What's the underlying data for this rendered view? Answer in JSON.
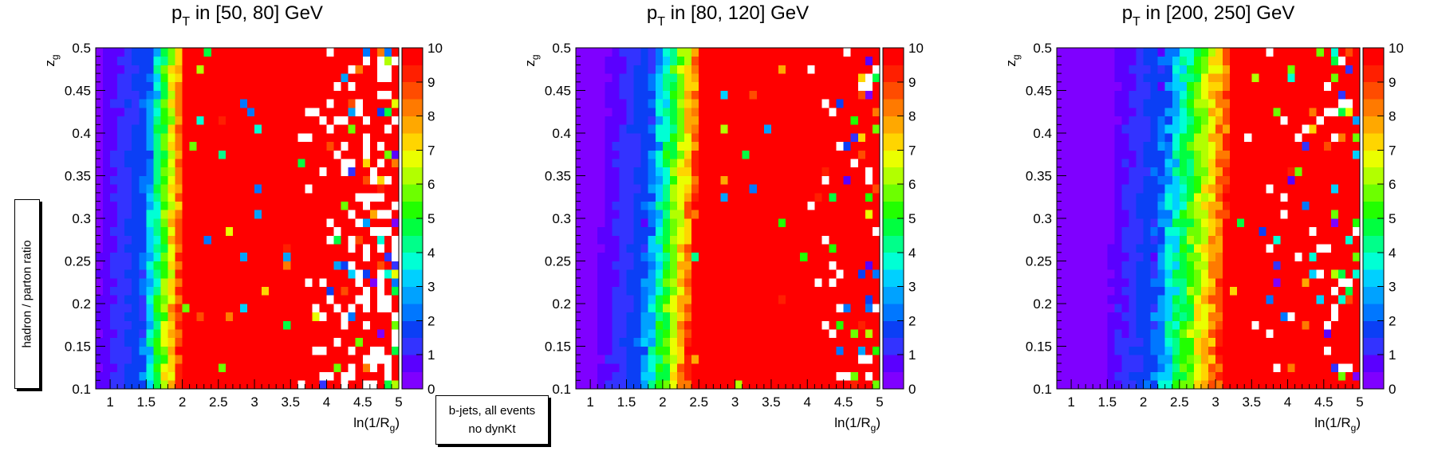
{
  "figure": {
    "y_title": "hadron / parton ratio",
    "tag_line1": "b-jets, all events",
    "tag_line2": "no dynKt"
  },
  "colors": {
    "palette": [
      "#7f00ff",
      "#5a00ff",
      "#3333ff",
      "#0b3ff5",
      "#0077ff",
      "#00a2ff",
      "#00d0ff",
      "#00ffd5",
      "#00ff8a",
      "#00ff40",
      "#22ff00",
      "#6dff00",
      "#b2ff00",
      "#eaff00",
      "#ffd500",
      "#ffa800",
      "#ff7a00",
      "#ff4c00",
      "#ff1f00",
      "#ff0000"
    ],
    "empty_bin": "#ffffff",
    "axis": "#000000"
  },
  "chart_data": [
    {
      "type": "heatmap",
      "title": "p_T in [50, 80] GeV",
      "title_main": "p",
      "title_sub": "T",
      "title_rest": " in [50, 80] GeV",
      "xlabel": "ln(1/R_g)",
      "ylabel": "z_g",
      "xlim": [
        0.8,
        5.0
      ],
      "ylim": [
        0.1,
        0.5
      ],
      "zlim": [
        0,
        10
      ],
      "x_bins": 42,
      "y_bins": 40,
      "x_ticks": [
        "1",
        "1.5",
        "2",
        "2.5",
        "3",
        "3.5",
        "4",
        "4.5",
        "5"
      ],
      "y_ticks": [
        "0.1",
        "0.15",
        "0.2",
        "0.25",
        "0.3",
        "0.35",
        "0.4",
        "0.45",
        "0.5"
      ],
      "z_ticks": [
        "0",
        "1",
        "2",
        "3",
        "4",
        "5",
        "6",
        "7",
        "8",
        "9",
        "10"
      ],
      "transition": {
        "x_at_ylow": 1.95,
        "x_at_yhigh": 2.05,
        "width": 0.55
      },
      "noise_from_x": 3.6,
      "empty_fraction_far": 0.22,
      "value_range_note": "ratio rises from ~0 (violet) at low ln(1/Rg) to >=10 (red) beyond the transition"
    },
    {
      "type": "heatmap",
      "title": "p_T in [80, 120] GeV",
      "title_main": "p",
      "title_sub": "T",
      "title_rest": " in [80, 120] GeV",
      "xlabel": "ln(1/R_g)",
      "ylabel": "z_g",
      "xlim": [
        0.8,
        5.0
      ],
      "ylim": [
        0.1,
        0.5
      ],
      "zlim": [
        0,
        10
      ],
      "x_bins": 42,
      "y_bins": 40,
      "x_ticks": [
        "1",
        "1.5",
        "2",
        "2.5",
        "3",
        "3.5",
        "4",
        "4.5",
        "5"
      ],
      "y_ticks": [
        "0.1",
        "0.15",
        "0.2",
        "0.25",
        "0.3",
        "0.35",
        "0.4",
        "0.45",
        "0.5"
      ],
      "z_ticks": [
        "0",
        "1",
        "2",
        "3",
        "4",
        "5",
        "6",
        "7",
        "8",
        "9",
        "10"
      ],
      "transition": {
        "x_at_ylow": 2.35,
        "x_at_yhigh": 2.55,
        "width": 0.7
      },
      "noise_from_x": 4.0,
      "empty_fraction_far": 0.12,
      "value_range_note": "ratio rises from ~0 (violet) at low ln(1/Rg) to >=10 (red) beyond the transition"
    },
    {
      "type": "heatmap",
      "title": "p_T in [200, 250] GeV",
      "title_main": "p",
      "title_sub": "T",
      "title_rest": " in [200, 250] GeV",
      "xlabel": "ln(1/R_g)",
      "ylabel": "z_g",
      "xlim": [
        0.8,
        5.0
      ],
      "ylim": [
        0.1,
        0.5
      ],
      "zlim": [
        0,
        10
      ],
      "x_bins": 42,
      "y_bins": 40,
      "x_ticks": [
        "1",
        "1.5",
        "2",
        "2.5",
        "3",
        "3.5",
        "4",
        "4.5",
        "5"
      ],
      "y_ticks": [
        "0.1",
        "0.15",
        "0.2",
        "0.25",
        "0.3",
        "0.35",
        "0.4",
        "0.45",
        "0.5"
      ],
      "z_ticks": [
        "0",
        "1",
        "2",
        "3",
        "4",
        "5",
        "6",
        "7",
        "8",
        "9",
        "10"
      ],
      "transition": {
        "x_at_ylow": 3.05,
        "x_at_yhigh": 3.25,
        "width": 1.0
      },
      "noise_from_x": 3.4,
      "empty_fraction_far": 0.06,
      "value_range_note": "ratio rises from ~0 (violet) at low ln(1/Rg) to >=10 (red) beyond the transition"
    }
  ]
}
